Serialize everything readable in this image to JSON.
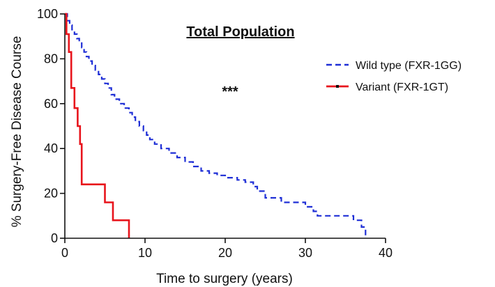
{
  "chart_data": {
    "type": "line",
    "title": "Total Population",
    "xlabel": "Time to surgery (years)",
    "ylabel": "% Surgery-Free Disease Course",
    "xlim": [
      0,
      40
    ],
    "ylim": [
      0,
      100
    ],
    "x_ticks": [
      0,
      10,
      20,
      30,
      40
    ],
    "y_ticks": [
      0,
      20,
      40,
      60,
      80,
      100
    ],
    "x_tick_labels": [
      "0",
      "10",
      "20",
      "30",
      "40"
    ],
    "y_tick_labels": [
      "0",
      "20",
      "40",
      "60",
      "80",
      "100"
    ],
    "grid": false,
    "legend_position": "top-right",
    "annotation": "***",
    "step": true,
    "series": [
      {
        "name": "Wild type (FXR-1GG)",
        "color": "#1f2fd6",
        "style": "dashed",
        "x": [
          0,
          0.3,
          0.6,
          0.9,
          1.2,
          1.5,
          1.8,
          2.1,
          2.4,
          2.7,
          3.0,
          3.4,
          3.8,
          4.2,
          4.6,
          5.0,
          5.4,
          5.8,
          6.2,
          6.8,
          7.4,
          8.0,
          8.4,
          8.8,
          9.3,
          9.8,
          10.2,
          10.6,
          11.2,
          12.0,
          13.0,
          14.0,
          15.0,
          16.0,
          17.0,
          18.0,
          19.0,
          20.0,
          21.5,
          22.5,
          23.5,
          24.0,
          25.0,
          27.0,
          30.0,
          31.0,
          31.5,
          36.0,
          37.0,
          37.5
        ],
        "y": [
          100,
          97,
          95,
          93,
          91,
          89,
          87,
          85,
          83,
          81,
          79,
          77,
          75,
          73,
          71,
          69,
          67,
          64,
          62,
          60,
          58,
          56,
          54,
          52,
          50,
          48,
          46,
          44,
          42,
          40,
          38,
          36,
          34,
          32,
          30,
          29,
          28,
          27,
          26,
          25,
          23,
          21,
          18,
          16,
          14,
          12,
          10,
          8,
          5,
          0
        ]
      },
      {
        "name": "Variant (FXR-1GT)",
        "color": "#e8141c",
        "style": "solid",
        "x": [
          0,
          0.2,
          0.5,
          0.8,
          1.2,
          1.6,
          1.9,
          2.1,
          5.0,
          6.0,
          8.0
        ],
        "y": [
          100,
          91,
          83,
          67,
          58,
          50,
          42,
          24,
          16,
          8,
          0
        ]
      }
    ]
  }
}
